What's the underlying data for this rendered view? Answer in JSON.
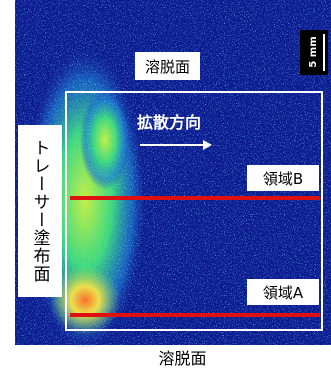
{
  "labels": {
    "top_surface": "溶脱面",
    "bottom_surface": "溶脱面",
    "scale_bar": "5 mm",
    "direction": "拡散方向",
    "region_b": "領域B",
    "region_a": "領域A",
    "tracer_surface": "トレーサー塗布面"
  }
}
